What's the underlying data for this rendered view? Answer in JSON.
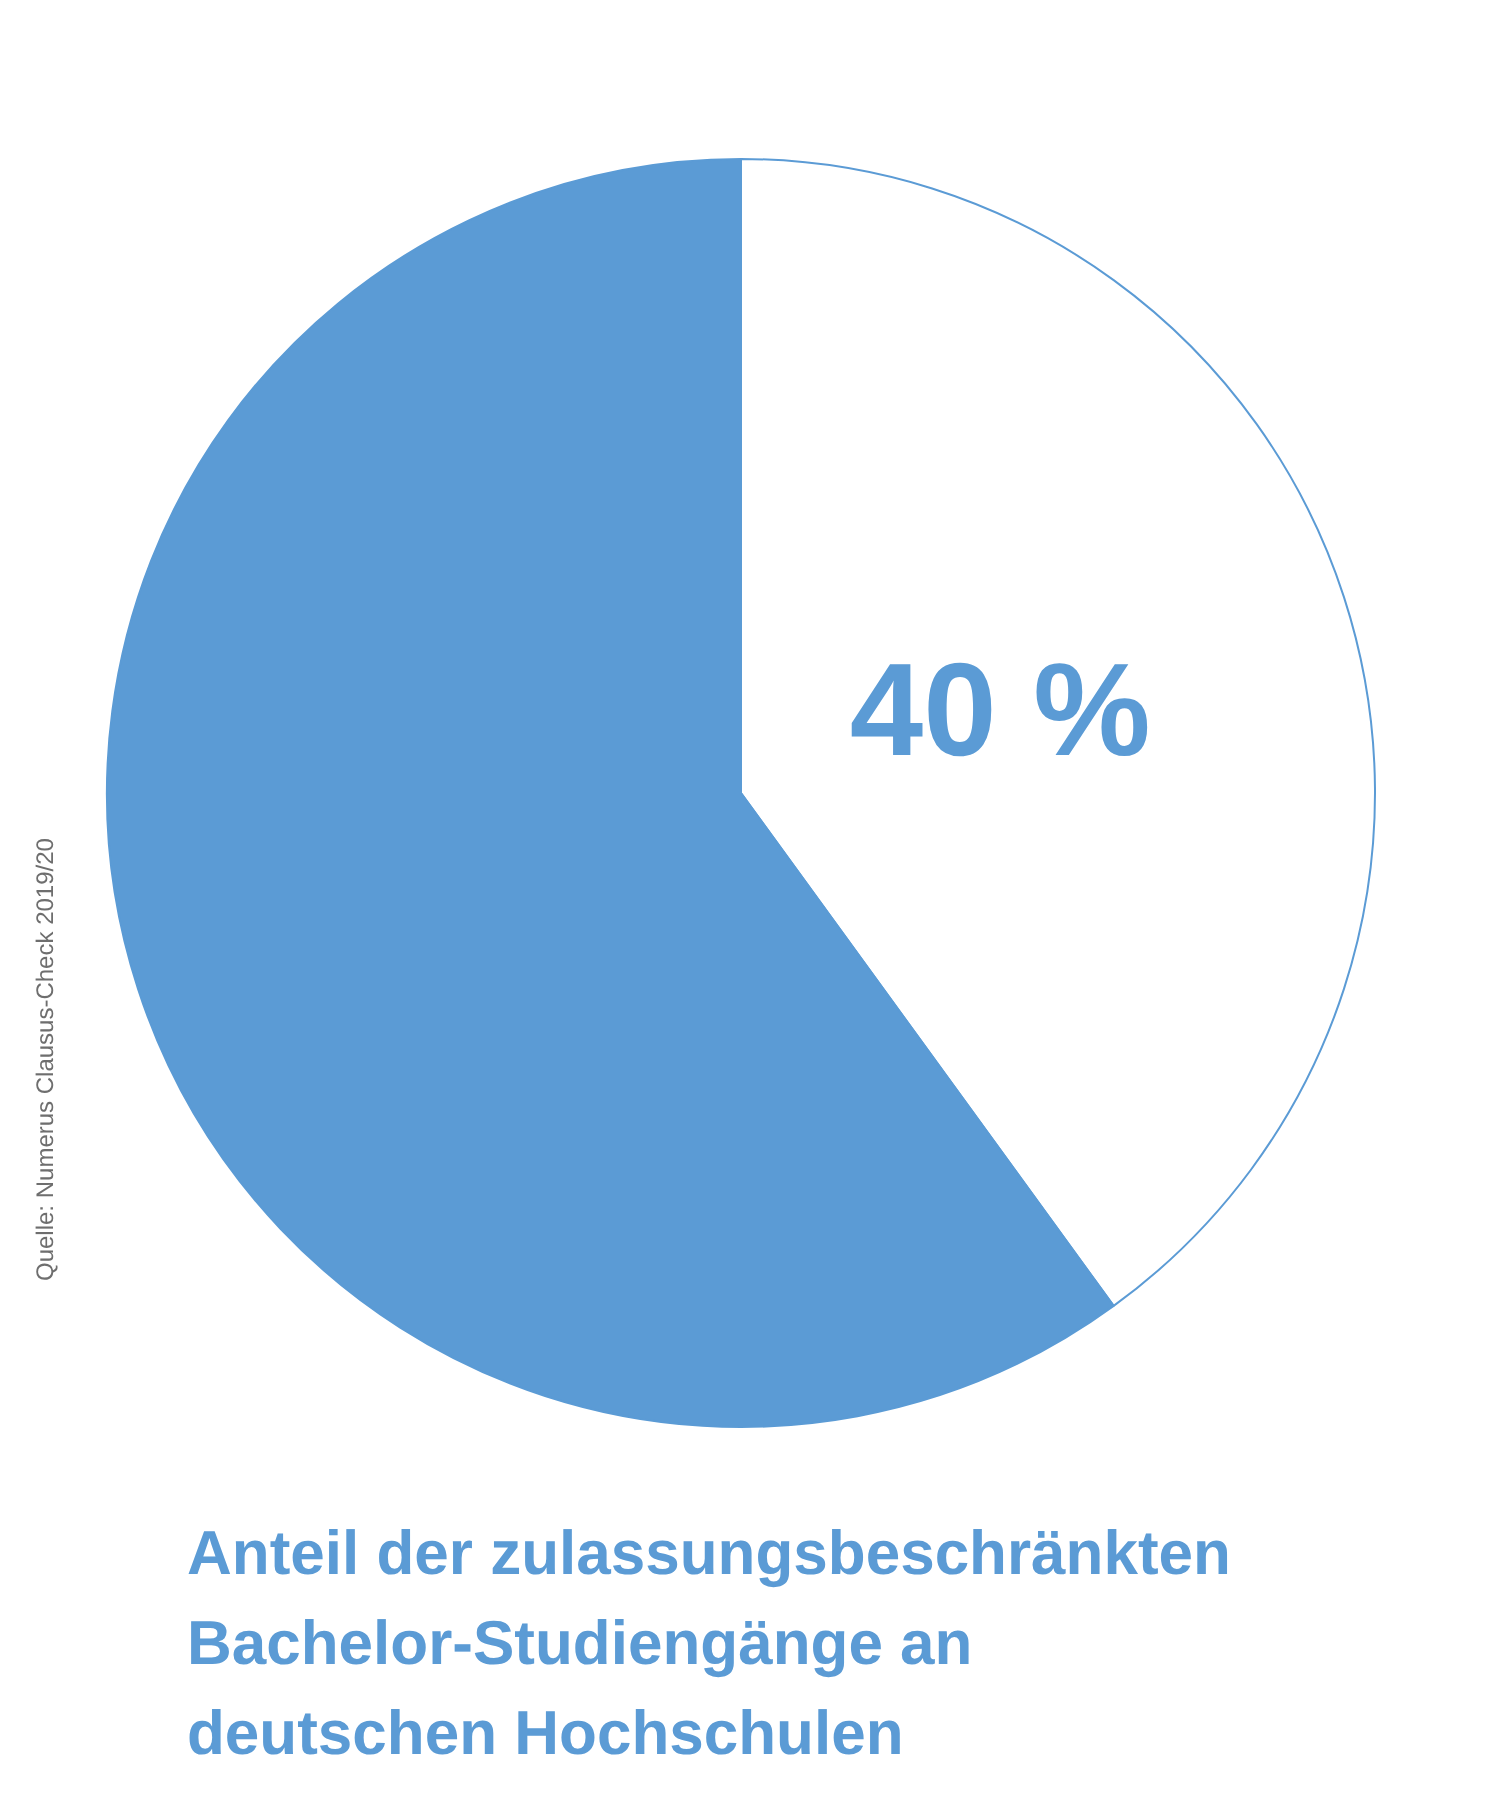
{
  "chart_data": {
    "type": "pie",
    "title": "Anteil der zulassungsbeschränkten Bachelor-Studiengänge an deutschen Hochschulen",
    "categories": [
      null,
      null
    ],
    "values": [
      40,
      60
    ],
    "colors": [
      "#ffffff",
      "#5b9bd5"
    ],
    "value_labels": [
      "40 %",
      null
    ],
    "annotations": [
      "Quelle: Numerus Clausus-Check 2019/20"
    ]
  }
}
